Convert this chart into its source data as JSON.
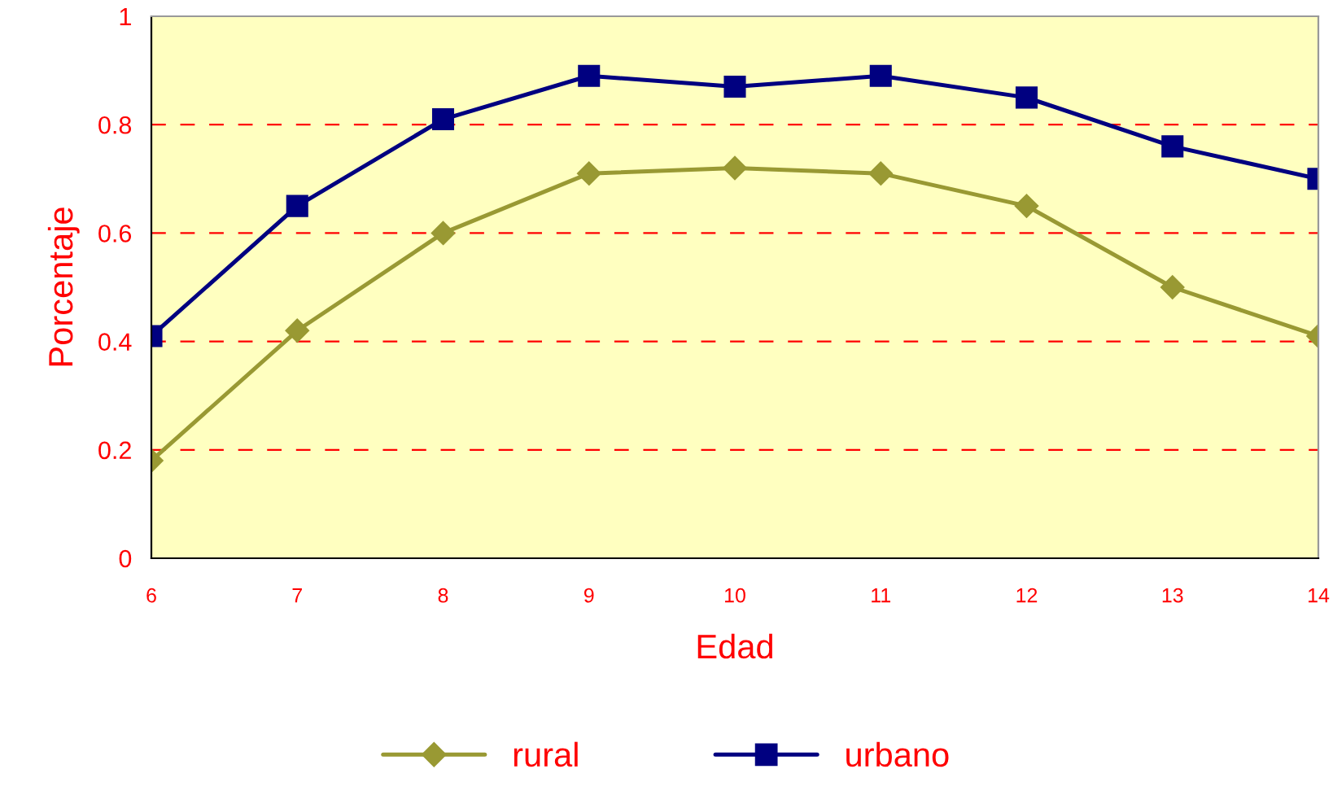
{
  "chart_data": {
    "type": "line",
    "xlabel": "Edad",
    "ylabel": "Porcentaje",
    "x": [
      6,
      7,
      8,
      9,
      10,
      11,
      12,
      13,
      14
    ],
    "xlim": [
      6,
      14
    ],
    "xticks": [
      6,
      7,
      8,
      9,
      10,
      11,
      12,
      13,
      14
    ],
    "ylim": [
      0,
      1
    ],
    "yticks": [
      0,
      0.2,
      0.4,
      0.6,
      0.8,
      1
    ],
    "grid": "y",
    "legend": "bottom",
    "line_style": "solid",
    "series": [
      {
        "name": "rural",
        "color": "#999933",
        "marker": "diamond",
        "values": [
          0.18,
          0.42,
          0.6,
          0.71,
          0.72,
          0.71,
          0.65,
          0.5,
          0.41
        ]
      },
      {
        "name": "urbano",
        "color": "#000080",
        "marker": "square",
        "values": [
          0.41,
          0.65,
          0.81,
          0.89,
          0.87,
          0.89,
          0.85,
          0.76,
          0.7
        ]
      }
    ]
  }
}
